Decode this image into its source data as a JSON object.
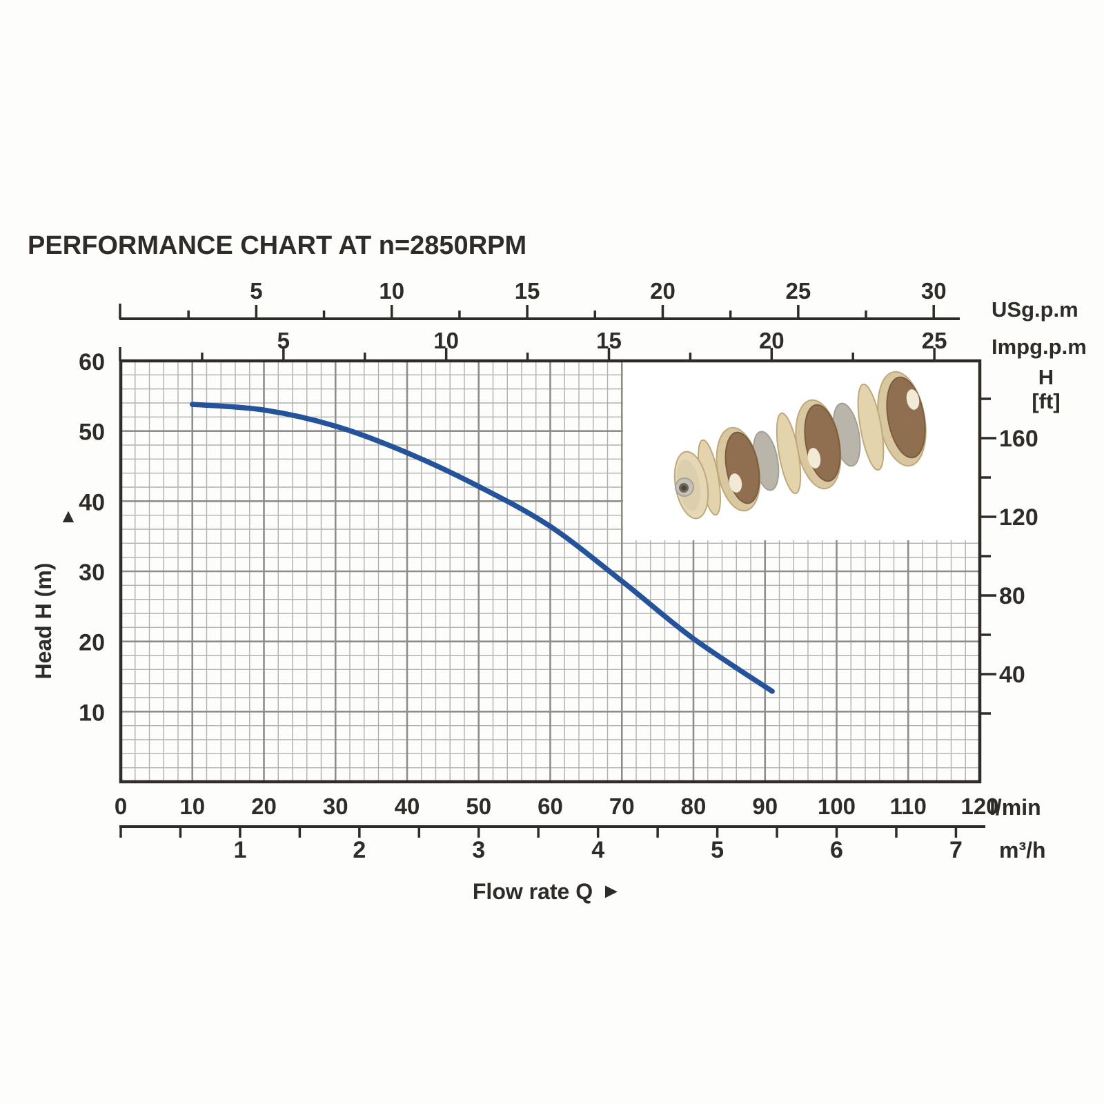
{
  "title": {
    "text": "PERFORMANCE CHART AT n=2850RPM",
    "color": "#2257a8"
  },
  "labels": {
    "usgpm_unit": "USg.p.m",
    "impgpm_unit": "Impg.p.m",
    "lmin_unit": "l/min",
    "m3h_unit": "m³/h",
    "ft_head_letter": "H",
    "ft_bracket": "[ft]",
    "flow_axis_name": "Flow rate Q",
    "flow_axis_arrow": "►",
    "head_axis_name": "Head H (m)",
    "head_axis_arrow": "▲"
  },
  "chart_data": {
    "type": "line",
    "title": "PERFORMANCE CHART AT n=2850RPM",
    "x_axis_lpm": {
      "unit": "l/min",
      "min": 0,
      "max": 120,
      "major_step": 10,
      "minor_grid_step": 2,
      "tick_labels": [
        0,
        10,
        20,
        30,
        40,
        50,
        60,
        70,
        80,
        90,
        100,
        110,
        120
      ]
    },
    "x_axis_m3h": {
      "unit": "m³/h",
      "min": 0,
      "max": 7,
      "tick_step": 0.5,
      "label_step": 1,
      "tick_labels": [
        1,
        2,
        3,
        4,
        5,
        6,
        7
      ],
      "lpm_per_unit": 16.6667
    },
    "x_axis_usgpm": {
      "unit": "USg.p.m",
      "min": 0,
      "max": 30,
      "tick_step": 2.5,
      "label_step": 5,
      "tick_labels": [
        5,
        10,
        15,
        20,
        25,
        30
      ],
      "lpm_per_unit": 3.78541
    },
    "x_axis_impgpm": {
      "unit": "Impg.p.m",
      "min": 0,
      "max": 25,
      "tick_step": 2.5,
      "label_step": 5,
      "tick_labels": [
        5,
        10,
        15,
        20,
        25
      ],
      "lpm_per_unit": 4.54609
    },
    "y_axis_m": {
      "unit": "m",
      "label": "Head H (m)",
      "min": 0,
      "max": 60,
      "major_step": 10,
      "minor_grid_step": 2,
      "tick_labels": [
        10,
        20,
        30,
        40,
        50,
        60
      ]
    },
    "y_axis_ft": {
      "unit": "ft",
      "label": "H [ft]",
      "min": 0,
      "max": 180,
      "tick_step": 20,
      "label_step": 40,
      "tick_labels": [
        40,
        80,
        120,
        160
      ]
    },
    "grid": {
      "shown": true,
      "minor_color": "#b2b0ac",
      "major_color": "#908d88"
    },
    "series": [
      {
        "name": "head-vs-flow-2850rpm",
        "color": "#25539b",
        "points_lpm_m": [
          [
            10,
            53.8
          ],
          [
            20,
            53.0
          ],
          [
            30,
            50.7
          ],
          [
            40,
            46.9
          ],
          [
            50,
            42.1
          ],
          [
            60,
            36.4
          ],
          [
            70,
            28.6
          ],
          [
            80,
            20.4
          ],
          [
            91,
            12.9
          ]
        ]
      }
    ],
    "legend": "none",
    "inset_image": "pump impeller stack photo"
  }
}
